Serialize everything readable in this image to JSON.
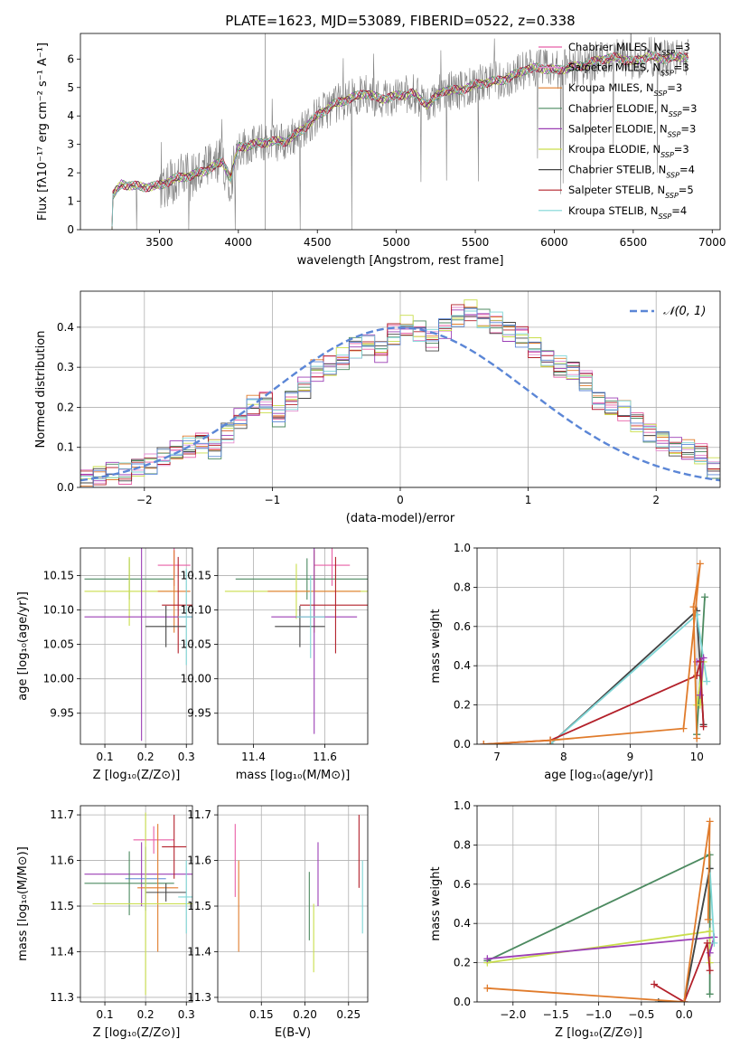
{
  "colors": {
    "chabrier_miles": "#e85fa6",
    "salpeter_miles": "#e58fd0",
    "kroupa_miles": "#e07b2b",
    "chabrier_elodie": "#4c8a60",
    "salpeter_elodie": "#9b3fb5",
    "kroupa_elodie": "#c9de4b",
    "chabrier_stelib": "#444444",
    "salpeter_stelib": "#b3202a",
    "kroupa_stelib": "#7fd6d6",
    "observed": "#808080",
    "normal": "#5b86d6"
  },
  "chart_data": [
    {
      "id": "spectrum",
      "type": "line",
      "title": "PLATE=1623, MJD=53089, FIBERID=0522, z=0.338",
      "xlabel": "wavelength [Angstrom, rest frame]",
      "ylabel": "Flux [fλ10⁻¹⁷ erg cm⁻² s⁻¹ A⁻¹]",
      "xlim": [
        3000,
        7050
      ],
      "ylim": [
        0,
        6.9
      ],
      "xticks": [
        "3500",
        "4000",
        "4500",
        "5000",
        "5500",
        "6000",
        "6500",
        "7000"
      ],
      "yticks": [
        "0",
        "1",
        "2",
        "3",
        "4",
        "5",
        "6"
      ],
      "model_continuum": [
        [
          3200,
          0
        ],
        [
          3205,
          1.2
        ],
        [
          3260,
          1.6
        ],
        [
          3400,
          1.5
        ],
        [
          3500,
          1.55
        ],
        [
          3600,
          1.8
        ],
        [
          3700,
          1.9
        ],
        [
          3800,
          2.1
        ],
        [
          3900,
          2.4
        ],
        [
          3950,
          1.8
        ],
        [
          4000,
          2.9
        ],
        [
          4100,
          3.0
        ],
        [
          4200,
          3.1
        ],
        [
          4300,
          3.1
        ],
        [
          4400,
          3.5
        ],
        [
          4500,
          4.0
        ],
        [
          4600,
          4.4
        ],
        [
          4700,
          4.6
        ],
        [
          4800,
          4.8
        ],
        [
          4900,
          4.6
        ],
        [
          5000,
          4.7
        ],
        [
          5100,
          4.8
        ],
        [
          5200,
          4.4
        ],
        [
          5300,
          4.9
        ],
        [
          5400,
          4.9
        ],
        [
          5500,
          5.1
        ],
        [
          5600,
          5.2
        ],
        [
          5700,
          5.3
        ],
        [
          5800,
          5.6
        ],
        [
          5900,
          5.7
        ],
        [
          6000,
          5.6
        ],
        [
          6100,
          5.7
        ],
        [
          6200,
          5.8
        ],
        [
          6300,
          6.0
        ],
        [
          6400,
          6.05
        ],
        [
          6500,
          5.9
        ],
        [
          6600,
          6.1
        ],
        [
          6700,
          6.0
        ],
        [
          6800,
          6.1
        ],
        [
          6850,
          6.05
        ]
      ],
      "legend": [
        {
          "label": "Chabrier MILES, N",
          "sub": "SSP",
          "suffix": "=3",
          "color": "#e85fa6"
        },
        {
          "label": "Salpeter MILES, N",
          "sub": "SSP",
          "suffix": "=3",
          "color": "#e58fd0"
        },
        {
          "label": "Kroupa MILES, N",
          "sub": "SSP",
          "suffix": "=3",
          "color": "#e07b2b"
        },
        {
          "label": "Chabrier ELODIE, N",
          "sub": "SSP",
          "suffix": "=3",
          "color": "#4c8a60"
        },
        {
          "label": "Salpeter ELODIE, N",
          "sub": "SSP",
          "suffix": "=3",
          "color": "#9b3fb5"
        },
        {
          "label": "Kroupa ELODIE, N",
          "sub": "SSP",
          "suffix": "=3",
          "color": "#c9de4b"
        },
        {
          "label": "Chabrier STELIB, N",
          "sub": "SSP",
          "suffix": "=4",
          "color": "#444444"
        },
        {
          "label": "Salpeter STELIB, N",
          "sub": "SSP",
          "suffix": "=5",
          "color": "#b3202a"
        },
        {
          "label": "Kroupa STELIB, N",
          "sub": "SSP",
          "suffix": "=4",
          "color": "#7fd6d6"
        }
      ]
    },
    {
      "id": "residuals",
      "type": "line",
      "xlabel": "(data-model)/error",
      "ylabel": "Normed distribution",
      "xlim": [
        -2.5,
        2.5
      ],
      "ylim": [
        0,
        0.49
      ],
      "xticks": [
        "−2",
        "−1",
        "0",
        "1",
        "2"
      ],
      "xtick_values": [
        -2,
        -1,
        0,
        1,
        2
      ],
      "yticks": [
        "0.0",
        "0.1",
        "0.2",
        "0.3",
        "0.4"
      ],
      "ytick_values": [
        0,
        0.1,
        0.2,
        0.3,
        0.4
      ],
      "legend_label": "𝒩(0, 1)",
      "hist_step": 0.1,
      "hist_values": [
        0.02,
        0.03,
        0.04,
        0.035,
        0.05,
        0.06,
        0.08,
        0.09,
        0.1,
        0.11,
        0.1,
        0.14,
        0.17,
        0.2,
        0.21,
        0.18,
        0.22,
        0.25,
        0.29,
        0.3,
        0.32,
        0.35,
        0.36,
        0.34,
        0.38,
        0.4,
        0.39,
        0.37,
        0.4,
        0.43,
        0.44,
        0.42,
        0.41,
        0.39,
        0.38,
        0.35,
        0.32,
        0.3,
        0.29,
        0.27,
        0.22,
        0.2,
        0.19,
        0.16,
        0.14,
        0.12,
        0.1,
        0.09,
        0.08,
        0.05
      ]
    },
    {
      "id": "age-vs-z",
      "type": "scatter",
      "xlabel": "Z [log₁₀(Z/Z⊙)]",
      "ylabel": "age  [log₁₀(age/yr)]",
      "xlim": [
        0.04,
        0.315
      ],
      "ylim": [
        9.905,
        10.19
      ],
      "xticks": [
        "0.1",
        "0.2",
        "0.3"
      ],
      "xtick_values": [
        0.1,
        0.2,
        0.3
      ],
      "yticks": [
        "9.95",
        "10.00",
        "10.05",
        "10.10",
        "10.15"
      ],
      "ytick_values": [
        9.95,
        10.0,
        10.05,
        10.1,
        10.15
      ],
      "points": [
        {
          "x": 0.27,
          "y": 10.165,
          "xe": 0.04,
          "ye": 0.03,
          "color": "#e85fa6"
        },
        {
          "x": 0.16,
          "y": 10.145,
          "xe": 0.11,
          "ye": 0.03,
          "color": "#4c8a60"
        },
        {
          "x": 0.16,
          "y": 10.127,
          "xe": 0.11,
          "ye": 0.05,
          "color": "#c9de4b"
        },
        {
          "x": 0.27,
          "y": 10.127,
          "xe": 0.04,
          "ye": 0.06,
          "color": "#e07b2b"
        },
        {
          "x": 0.19,
          "y": 10.09,
          "xe": 0.14,
          "ye": 0.18,
          "color": "#9b3fb5"
        },
        {
          "x": 0.28,
          "y": 10.107,
          "xe": 0.04,
          "ye": 0.07,
          "color": "#b3202a"
        },
        {
          "x": 0.25,
          "y": 10.076,
          "xe": 0.05,
          "ye": 0.03,
          "color": "#444444"
        },
        {
          "x": 0.3,
          "y": 10.09,
          "xe": 0.02,
          "ye": 0.07,
          "color": "#7fd6d6"
        }
      ]
    },
    {
      "id": "age-vs-mass",
      "type": "scatter",
      "xlabel": "mass [log₁₀(M/M⊙)]",
      "xlim": [
        11.3,
        11.72
      ],
      "ylim": [
        9.905,
        10.19
      ],
      "xticks": [
        "11.4",
        "11.6"
      ],
      "xtick_values": [
        11.4,
        11.6
      ],
      "yticks": [
        "9.95",
        "10.00",
        "10.05",
        "10.10",
        "10.15"
      ],
      "ytick_values": [
        9.95,
        10.0,
        10.05,
        10.1,
        10.15
      ],
      "points": [
        {
          "x": 11.62,
          "y": 10.165,
          "xe": 0.05,
          "ye": 0.03,
          "color": "#e85fa6"
        },
        {
          "x": 11.55,
          "y": 10.145,
          "xe": 0.2,
          "ye": 0.03,
          "color": "#4c8a60"
        },
        {
          "x": 11.52,
          "y": 10.127,
          "xe": 0.2,
          "ye": 0.04,
          "color": "#c9de4b"
        },
        {
          "x": 11.57,
          "y": 10.127,
          "xe": 0.13,
          "ye": 0.06,
          "color": "#e07b2b"
        },
        {
          "x": 11.57,
          "y": 10.09,
          "xe": 0.12,
          "ye": 0.17,
          "color": "#9b3fb5"
        },
        {
          "x": 11.63,
          "y": 10.107,
          "xe": 0.1,
          "ye": 0.07,
          "color": "#b3202a"
        },
        {
          "x": 11.53,
          "y": 10.076,
          "xe": 0.07,
          "ye": 0.03,
          "color": "#444444"
        },
        {
          "x": 11.56,
          "y": 10.09,
          "xe": 0.04,
          "ye": 0.06,
          "color": "#7fd6d6"
        }
      ]
    },
    {
      "id": "weight-vs-age",
      "type": "line",
      "xlabel": "age  [log₁₀(age/yr)]",
      "ylabel": "mass weight",
      "xlim": [
        6.7,
        10.35
      ],
      "ylim": [
        0,
        1.0
      ],
      "xticks": [
        "7",
        "8",
        "9",
        "10"
      ],
      "xtick_values": [
        7,
        8,
        9,
        10
      ],
      "yticks": [
        "0.0",
        "0.2",
        "0.4",
        "0.6",
        "0.8",
        "1.0"
      ],
      "ytick_values": [
        0,
        0.2,
        0.4,
        0.6,
        0.8,
        1.0
      ],
      "series": [
        {
          "color": "#4c8a60",
          "points": [
            [
              10.0,
              0.05
            ],
            [
              10.12,
              0.75
            ],
            [
              10.0,
              0.05
            ]
          ]
        },
        {
          "color": "#444444",
          "points": [
            [
              7.8,
              0.0
            ],
            [
              10.0,
              0.68
            ],
            [
              10.1,
              0.1
            ]
          ]
        },
        {
          "color": "#7fd6d6",
          "points": [
            [
              7.8,
              0.0
            ],
            [
              10.0,
              0.66
            ],
            [
              10.15,
              0.32
            ]
          ]
        },
        {
          "color": "#c9de4b",
          "points": [
            [
              10.0,
              0.2
            ],
            [
              10.1,
              0.42
            ],
            [
              10.05,
              0.2
            ]
          ]
        },
        {
          "color": "#9b3fb5",
          "points": [
            [
              10.0,
              0.42
            ],
            [
              10.1,
              0.44
            ],
            [
              10.05,
              0.25
            ]
          ]
        },
        {
          "color": "#b3202a",
          "points": [
            [
              6.8,
              0.0
            ],
            [
              7.8,
              0.02
            ],
            [
              10.0,
              0.35
            ],
            [
              10.05,
              0.42
            ],
            [
              10.1,
              0.09
            ]
          ]
        },
        {
          "color": "#e07b2b",
          "points": [
            [
              6.8,
              0.0
            ],
            [
              7.8,
              0.02
            ],
            [
              9.8,
              0.08
            ],
            [
              10.05,
              0.92
            ],
            [
              9.95,
              0.7
            ],
            [
              10.0,
              0.03
            ]
          ]
        }
      ]
    },
    {
      "id": "mass-vs-z",
      "type": "scatter",
      "xlabel": "Z [log₁₀(Z/Z⊙)]",
      "ylabel": "mass [log₁₀(M/M⊙)]",
      "xlim": [
        0.04,
        0.315
      ],
      "ylim": [
        11.29,
        11.72
      ],
      "xticks": [
        "0.1",
        "0.2",
        "0.3"
      ],
      "xtick_values": [
        0.1,
        0.2,
        0.3
      ],
      "yticks": [
        "11.3",
        "11.4",
        "11.5",
        "11.6",
        "11.7"
      ],
      "ytick_values": [
        11.3,
        11.4,
        11.5,
        11.6,
        11.7
      ],
      "points": [
        {
          "x": 0.22,
          "y": 11.645,
          "xe": 0.05,
          "ye": 0.03,
          "color": "#e85fa6"
        },
        {
          "x": 0.19,
          "y": 11.57,
          "xe": 0.14,
          "ye": 0.07,
          "color": "#9b3fb5"
        },
        {
          "x": 0.2,
          "y": 11.56,
          "xe": 0.05,
          "ye": 0.07,
          "color": "#5b86d6"
        },
        {
          "x": 0.16,
          "y": 11.55,
          "xe": 0.11,
          "ye": 0.07,
          "color": "#4c8a60"
        },
        {
          "x": 0.23,
          "y": 11.54,
          "xe": 0.05,
          "ye": 0.14,
          "color": "#e07b2b"
        },
        {
          "x": 0.27,
          "y": 11.63,
          "xe": 0.03,
          "ye": 0.07,
          "color": "#b3202a"
        },
        {
          "x": 0.25,
          "y": 11.53,
          "xe": 0.05,
          "ye": 0.02,
          "color": "#444444"
        },
        {
          "x": 0.2,
          "y": 11.505,
          "xe": 0.13,
          "ye": 0.2,
          "color": "#c9de4b"
        },
        {
          "x": 0.3,
          "y": 11.52,
          "xe": 0.02,
          "ye": 0.08,
          "color": "#7fd6d6"
        }
      ]
    },
    {
      "id": "mass-vs-ebv",
      "type": "scatter",
      "xlabel": "E(B-V)",
      "xlim": [
        0.1,
        0.272
      ],
      "ylim": [
        11.29,
        11.72
      ],
      "xticks": [
        "0.15",
        "0.20",
        "0.25"
      ],
      "xtick_values": [
        0.15,
        0.2,
        0.25
      ],
      "yticks": [
        "11.3",
        "11.4",
        "11.5",
        "11.6",
        "11.7"
      ],
      "ytick_values": [
        11.3,
        11.4,
        11.5,
        11.6,
        11.7
      ],
      "points": [
        {
          "x": 0.12,
          "y": 11.6,
          "xe": 0,
          "ye": 0.08,
          "color": "#e85fa6"
        },
        {
          "x": 0.124,
          "y": 11.5,
          "xe": 0,
          "ye": 0.1,
          "color": "#e07b2b"
        },
        {
          "x": 0.205,
          "y": 11.5,
          "xe": 0,
          "ye": 0.075,
          "color": "#4c8a60"
        },
        {
          "x": 0.21,
          "y": 11.43,
          "xe": 0,
          "ye": 0.075,
          "color": "#c9de4b"
        },
        {
          "x": 0.215,
          "y": 11.57,
          "xe": 0,
          "ye": 0.07,
          "color": "#9b3fb5"
        },
        {
          "x": 0.262,
          "y": 11.62,
          "xe": 0,
          "ye": 0.08,
          "color": "#b3202a"
        },
        {
          "x": 0.266,
          "y": 11.52,
          "xe": 0,
          "ye": 0.08,
          "color": "#7fd6d6"
        }
      ]
    },
    {
      "id": "weight-vs-z",
      "type": "line",
      "xlabel": "Z [log₁₀(Z/Z⊙)]",
      "ylabel": "mass weight",
      "xlim": [
        -2.42,
        0.42
      ],
      "ylim": [
        0,
        1.0
      ],
      "xticks": [
        "−2.0",
        "−1.5",
        "−1.0",
        "−0.5",
        "0.0"
      ],
      "xtick_values": [
        -2.0,
        -1.5,
        -1.0,
        -0.5,
        0.0
      ],
      "yticks": [
        "0.0",
        "0.2",
        "0.4",
        "0.6",
        "0.8",
        "1.0"
      ],
      "ytick_values": [
        0,
        0.2,
        0.4,
        0.6,
        0.8,
        1.0
      ],
      "series": [
        {
          "color": "#4c8a60",
          "points": [
            [
              -2.3,
              0.21
            ],
            [
              0.3,
              0.75
            ],
            [
              0.3,
              0.04
            ]
          ]
        },
        {
          "color": "#c9de4b",
          "points": [
            [
              -2.3,
              0.2
            ],
            [
              0.3,
              0.36
            ],
            [
              0.3,
              0.2
            ]
          ]
        },
        {
          "color": "#9b3fb5",
          "points": [
            [
              -2.3,
              0.22
            ],
            [
              0.35,
              0.33
            ],
            [
              0.3,
              0.25
            ]
          ]
        },
        {
          "color": "#7fd6d6",
          "points": [
            [
              -0.3,
              0.0
            ],
            [
              0.0,
              0.0
            ],
            [
              0.3,
              0.68
            ],
            [
              0.35,
              0.3
            ]
          ]
        },
        {
          "color": "#444444",
          "points": [
            [
              -0.3,
              0.0
            ],
            [
              0.0,
              0.0
            ],
            [
              0.3,
              0.68
            ]
          ]
        },
        {
          "color": "#b3202a",
          "points": [
            [
              -0.35,
              0.09
            ],
            [
              0.0,
              0.0
            ],
            [
              0.27,
              0.3
            ],
            [
              0.3,
              0.16
            ]
          ]
        },
        {
          "color": "#e07b2b",
          "points": [
            [
              -2.3,
              0.07
            ],
            [
              0.0,
              0.0
            ],
            [
              0.3,
              0.92
            ],
            [
              0.28,
              0.42
            ]
          ]
        }
      ]
    }
  ]
}
